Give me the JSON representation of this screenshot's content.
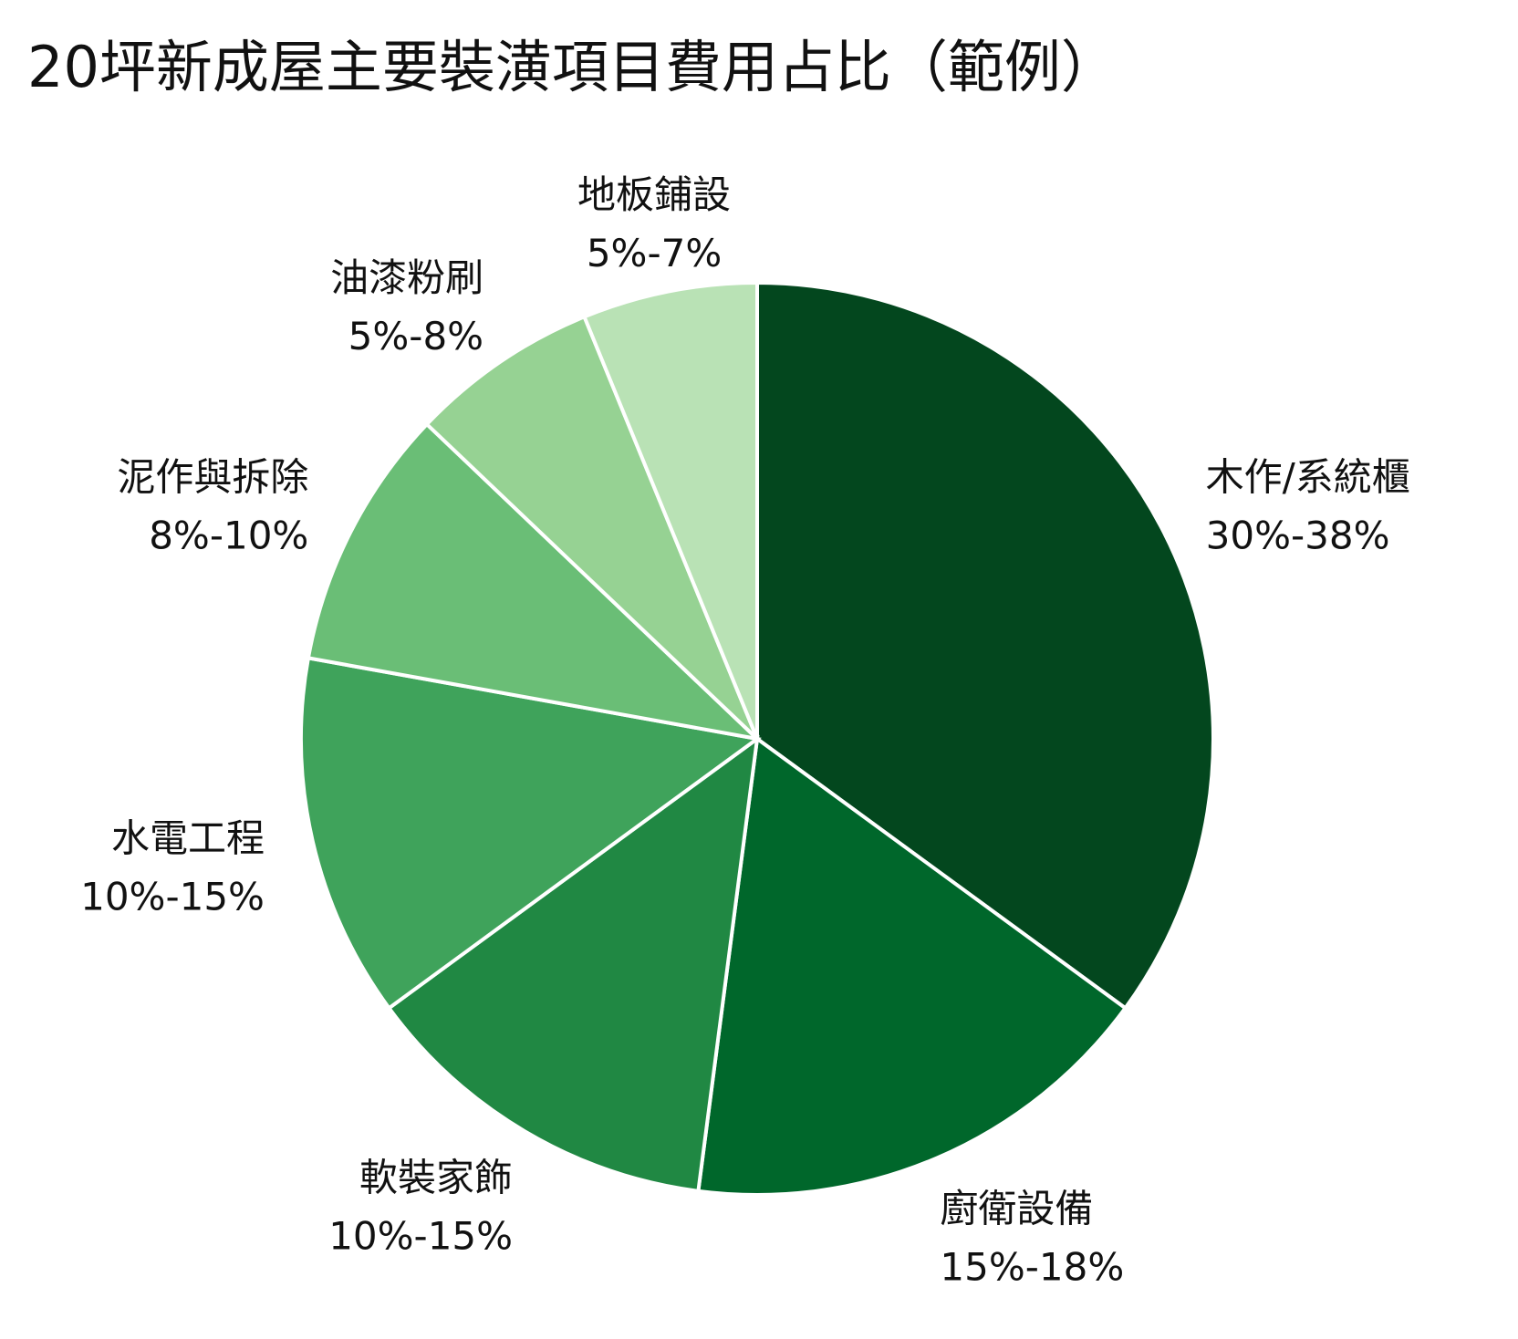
{
  "chart_data": {
    "type": "pie",
    "title": "20坪新成屋主要裝潢項目費用占比（範例）",
    "start_angle_deg": 0,
    "direction": "clockwise",
    "slices": [
      {
        "label": "木作/系統櫃",
        "range": "30%-38%",
        "value": 34,
        "color": "#03471e"
      },
      {
        "label": "廚衛設備",
        "range": "15%-18%",
        "value": 16.5,
        "color": "#00672b"
      },
      {
        "label": "軟裝家飾",
        "range": "10%-15%",
        "value": 12.5,
        "color": "#208843"
      },
      {
        "label": "水電工程",
        "range": "10%-15%",
        "value": 12.5,
        "color": "#3fa35b"
      },
      {
        "label": "泥作與拆除",
        "range": "8%-10%",
        "value": 9,
        "color": "#6abe76"
      },
      {
        "label": "油漆粉刷",
        "range": "5%-8%",
        "value": 6.5,
        "color": "#96d293"
      },
      {
        "label": "地板鋪設",
        "range": "5%-7%",
        "value": 6,
        "color": "#b9e2b5"
      }
    ]
  }
}
